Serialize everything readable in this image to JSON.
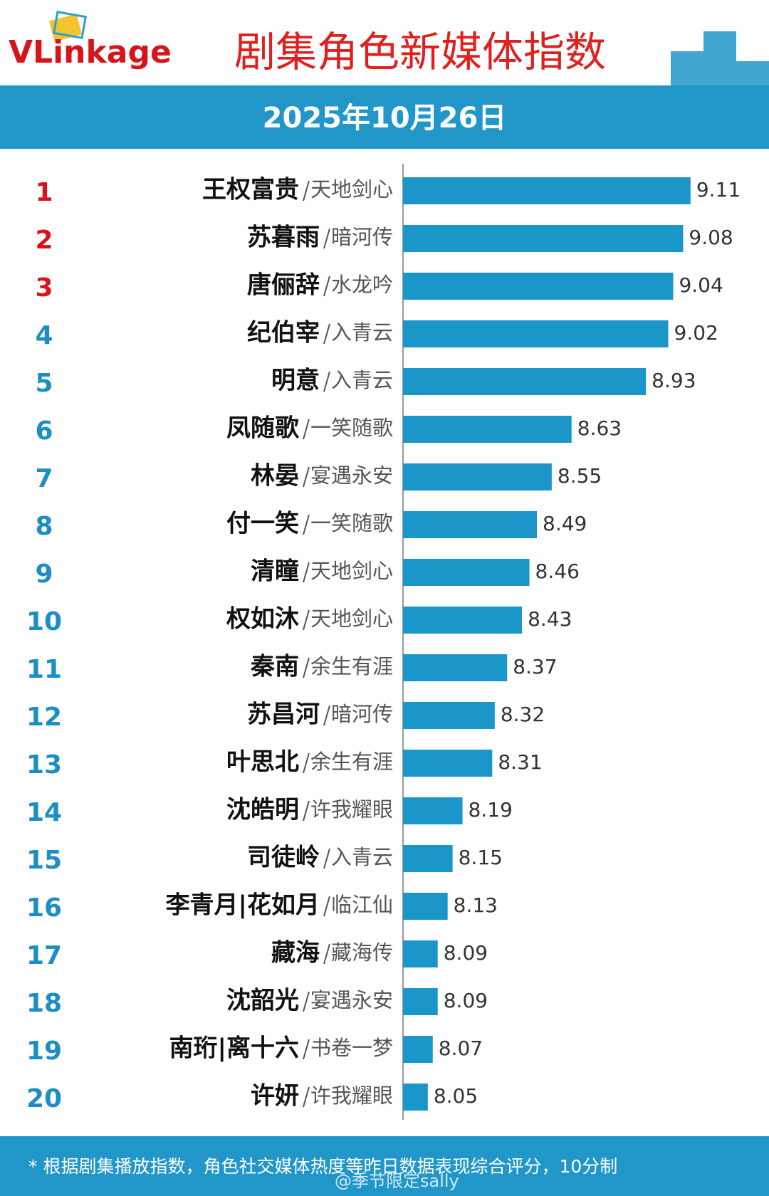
{
  "logo": "VLinkage",
  "chart_data": {
    "type": "bar",
    "orientation": "horizontal",
    "title": "剧集角色新媒体指数",
    "subtitle": "2025年10月26日",
    "ranks": [
      1,
      2,
      3,
      4,
      5,
      6,
      7,
      8,
      9,
      10,
      11,
      12,
      13,
      14,
      15,
      16,
      17,
      18,
      19,
      20
    ],
    "categories": [
      "王权富贵",
      "苏暮雨",
      "唐俪辞",
      "纪伯宰",
      "明意",
      "凤随歌",
      "林晏",
      "付一笑",
      "清瞳",
      "权如沐",
      "秦南",
      "苏昌河",
      "叶思北",
      "沈皓明",
      "司徒岭",
      "李青月|花如月",
      "藏海",
      "沈韶光",
      "南珩|离十六",
      "许妍"
    ],
    "dramas": [
      "天地剑心",
      "暗河传",
      "水龙吟",
      "入青云",
      "入青云",
      "一笑随歌",
      "宴遇永安",
      "一笑随歌",
      "天地剑心",
      "天地剑心",
      "余生有涯",
      "暗河传",
      "余生有涯",
      "许我耀眼",
      "入青云",
      "临江仙",
      "藏海传",
      "宴遇永安",
      "书卷一梦",
      "许我耀眼"
    ],
    "values": [
      9.11,
      9.08,
      9.04,
      9.02,
      8.93,
      8.63,
      8.55,
      8.49,
      8.46,
      8.43,
      8.37,
      8.32,
      8.31,
      8.19,
      8.15,
      8.13,
      8.09,
      8.09,
      8.07,
      8.05
    ],
    "xlim": [
      7.95,
      9.3
    ],
    "color": "#1b96c8",
    "rank_color": "#1b8fc4",
    "top_rank_color": "#d7141a",
    "top_ranks": 3,
    "footnote": "* 根据剧集播放指数，角色社交媒体热度等昨日数据表现综合评分，10分制",
    "watermark": "@季节限定sally"
  }
}
